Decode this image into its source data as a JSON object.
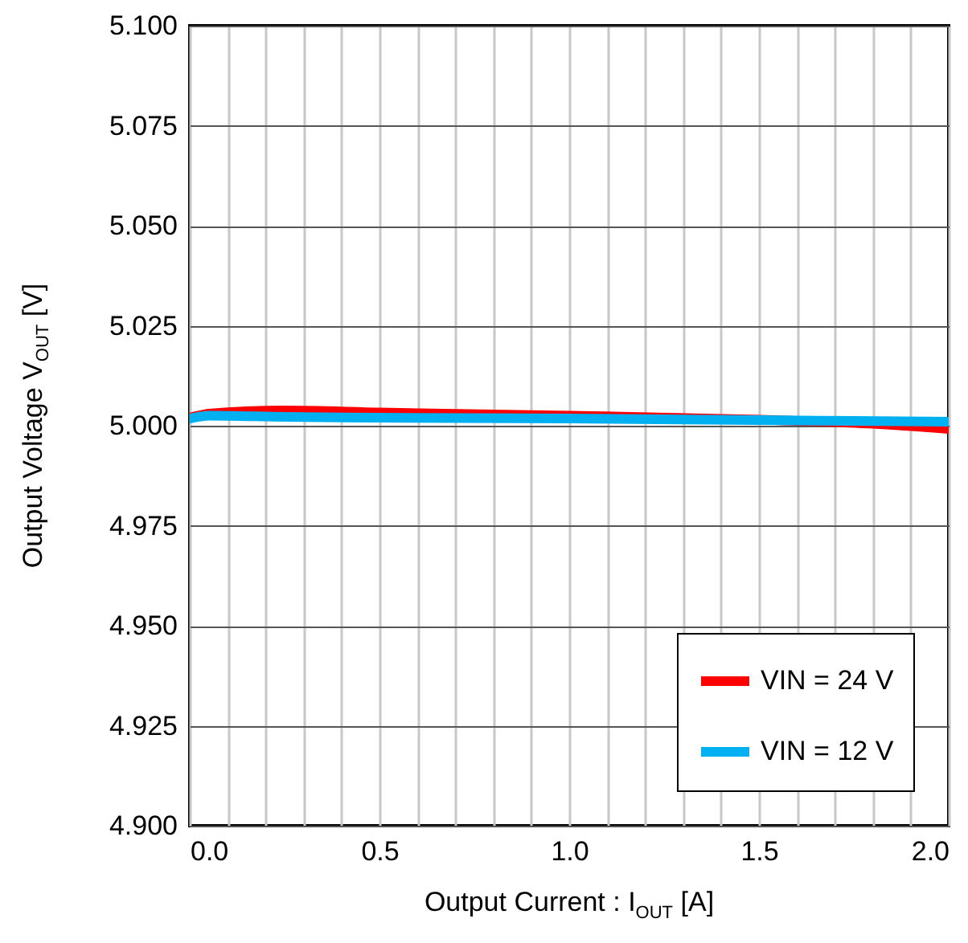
{
  "chart_data": {
    "type": "line",
    "xlabel": "Output Current : I$_{OUT}$ [A]",
    "ylabel": "Output Voltage  V$_{OUT}$ [V]",
    "series": [
      {
        "name": "VIN = 24 V",
        "color": "#ff0000",
        "x": [
          0.0,
          0.05,
          0.25,
          0.5,
          1.0,
          1.5,
          1.8,
          2.0
        ],
        "values": [
          5.002,
          5.003,
          5.0038,
          5.0033,
          5.0025,
          5.0015,
          5.0005,
          4.9992
        ]
      },
      {
        "name": "VIN = 12 V",
        "color": "#00b0f0",
        "x": [
          0.0,
          0.05,
          0.25,
          0.5,
          1.0,
          1.5,
          2.0
        ],
        "values": [
          5.0018,
          5.0025,
          5.0022,
          5.002,
          5.0018,
          5.0014,
          5.001
        ]
      }
    ],
    "xlim": [
      0,
      2
    ],
    "ylim": [
      4.9,
      5.1
    ],
    "xticks": [
      {
        "value": 0,
        "label": "0.0"
      },
      {
        "value": 0.1,
        "label": null
      },
      {
        "value": 0.2,
        "label": null
      },
      {
        "value": 0.3,
        "label": null
      },
      {
        "value": 0.4,
        "label": null
      },
      {
        "value": 0.5,
        "label": "0.5"
      },
      {
        "value": 0.6,
        "label": null
      },
      {
        "value": 0.7,
        "label": null
      },
      {
        "value": 0.8,
        "label": null
      },
      {
        "value": 0.9,
        "label": null
      },
      {
        "value": 1,
        "label": "1.0"
      },
      {
        "value": 1.1,
        "label": null
      },
      {
        "value": 1.2,
        "label": null
      },
      {
        "value": 1.3,
        "label": null
      },
      {
        "value": 1.4,
        "label": null
      },
      {
        "value": 1.5,
        "label": "1.5"
      },
      {
        "value": 1.6,
        "label": null
      },
      {
        "value": 1.7,
        "label": null
      },
      {
        "value": 1.8,
        "label": null
      },
      {
        "value": 1.9,
        "label": null
      },
      {
        "value": 2,
        "label": "2.0"
      }
    ],
    "yticks": [
      {
        "value": 4.9,
        "label": "4.900"
      },
      {
        "value": 4.925,
        "label": "4.925"
      },
      {
        "value": 4.95,
        "label": "4.950"
      },
      {
        "value": 4.975,
        "label": "4.975"
      },
      {
        "value": 5.0,
        "label": "5.000"
      },
      {
        "value": 5.025,
        "label": "5.025"
      },
      {
        "value": 5.05,
        "label": "5.050"
      },
      {
        "value": 5.075,
        "label": "5.075"
      },
      {
        "value": 5.1,
        "label": "5.100"
      }
    ],
    "grid": true,
    "legend": "bottom right",
    "line_style": "solid"
  }
}
